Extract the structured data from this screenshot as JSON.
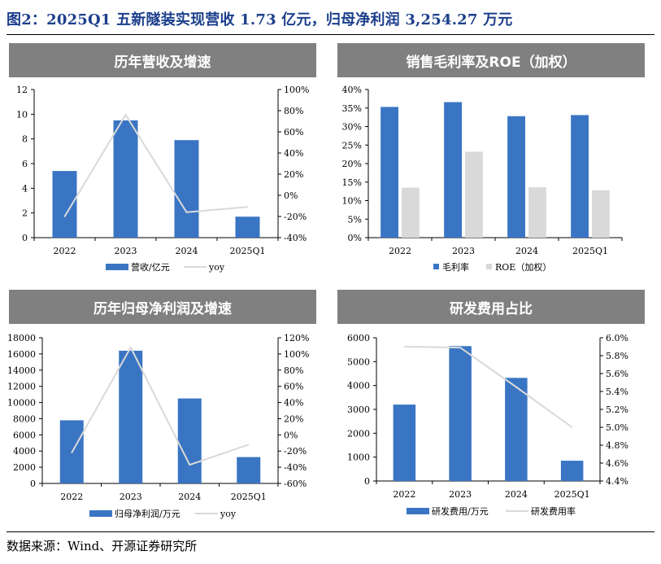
{
  "figure_title": "图2：2025Q1 五新隧装实现营收 1.73 亿元，归母净利润 3,254.27 万元",
  "source": "数据来源：Wind、开源证券研究所",
  "colors": {
    "bar": "#3a75c4",
    "bar_gray": "#d9d9d9",
    "line": "#d9d9d9",
    "header": "#808080",
    "title": "#1c3f8c"
  },
  "chart_data": [
    {
      "id": "revenue",
      "type": "bar",
      "title": "历年营收及增速",
      "categories": [
        "2022",
        "2023",
        "2024",
        "2025Q1"
      ],
      "series": [
        {
          "name": "营收/亿元",
          "kind": "bar",
          "axis": "left",
          "values": [
            5.4,
            9.5,
            7.9,
            1.7
          ]
        },
        {
          "name": "yoy",
          "kind": "line",
          "axis": "right",
          "values": [
            -20,
            76,
            -16,
            -11
          ]
        }
      ],
      "left_axis": {
        "min": 0,
        "max": 12,
        "ticks": [
          "0",
          "2",
          "4",
          "6",
          "8",
          "10",
          "12"
        ]
      },
      "right_axis": {
        "min": -40,
        "max": 100,
        "ticks": [
          "-40%",
          "-20%",
          "0%",
          "20%",
          "40%",
          "60%",
          "80%",
          "100%"
        ]
      }
    },
    {
      "id": "margin",
      "type": "bar",
      "title": "销售毛利率及ROE（加权）",
      "categories": [
        "2022",
        "2023",
        "2024",
        "2025Q1"
      ],
      "series": [
        {
          "name": "毛利率",
          "kind": "bar",
          "axis": "left",
          "color": "#3a75c4",
          "values": [
            35.3,
            36.6,
            32.8,
            33.1
          ]
        },
        {
          "name": "ROE（加权）",
          "kind": "bar",
          "axis": "left",
          "color": "#d9d9d9",
          "values": [
            13.5,
            23.2,
            13.6,
            12.8
          ]
        }
      ],
      "left_axis": {
        "min": 0,
        "max": 40,
        "ticks": [
          "0%",
          "5%",
          "10%",
          "15%",
          "20%",
          "25%",
          "30%",
          "35%",
          "40%"
        ]
      }
    },
    {
      "id": "profit",
      "type": "bar",
      "title": "历年归母净利润及增速",
      "categories": [
        "2022",
        "2023",
        "2024",
        "2025Q1"
      ],
      "series": [
        {
          "name": "归母净利润/万元",
          "kind": "bar",
          "axis": "left",
          "values": [
            7800,
            16400,
            10500,
            3254.27
          ]
        },
        {
          "name": "yoy",
          "kind": "line",
          "axis": "right",
          "values": [
            -22,
            108,
            -37,
            -12
          ]
        }
      ],
      "left_axis": {
        "min": 0,
        "max": 18000,
        "ticks": [
          "0",
          "2000",
          "4000",
          "6000",
          "8000",
          "10000",
          "12000",
          "14000",
          "16000",
          "18000"
        ]
      },
      "right_axis": {
        "min": -60,
        "max": 120,
        "ticks": [
          "-60%",
          "-40%",
          "-20%",
          "0%",
          "20%",
          "40%",
          "60%",
          "80%",
          "100%",
          "120%"
        ]
      }
    },
    {
      "id": "rnd",
      "type": "bar",
      "title": "研发费用占比",
      "categories": [
        "2022",
        "2023",
        "2024",
        "2025Q1"
      ],
      "series": [
        {
          "name": "研发费用/万元",
          "kind": "bar",
          "axis": "left",
          "values": [
            3200,
            5650,
            4320,
            850
          ]
        },
        {
          "name": "研发费用率",
          "kind": "line",
          "axis": "right",
          "values": [
            5.9,
            5.89,
            5.45,
            5.0
          ]
        }
      ],
      "left_axis": {
        "min": 0,
        "max": 6000,
        "ticks": [
          "0",
          "1000",
          "2000",
          "3000",
          "4000",
          "5000",
          "6000"
        ]
      },
      "right_axis": {
        "min": 4.4,
        "max": 6.0,
        "ticks": [
          "4.4%",
          "4.6%",
          "4.8%",
          "5.0%",
          "5.2%",
          "5.4%",
          "5.6%",
          "5.8%",
          "6.0%"
        ]
      }
    }
  ]
}
